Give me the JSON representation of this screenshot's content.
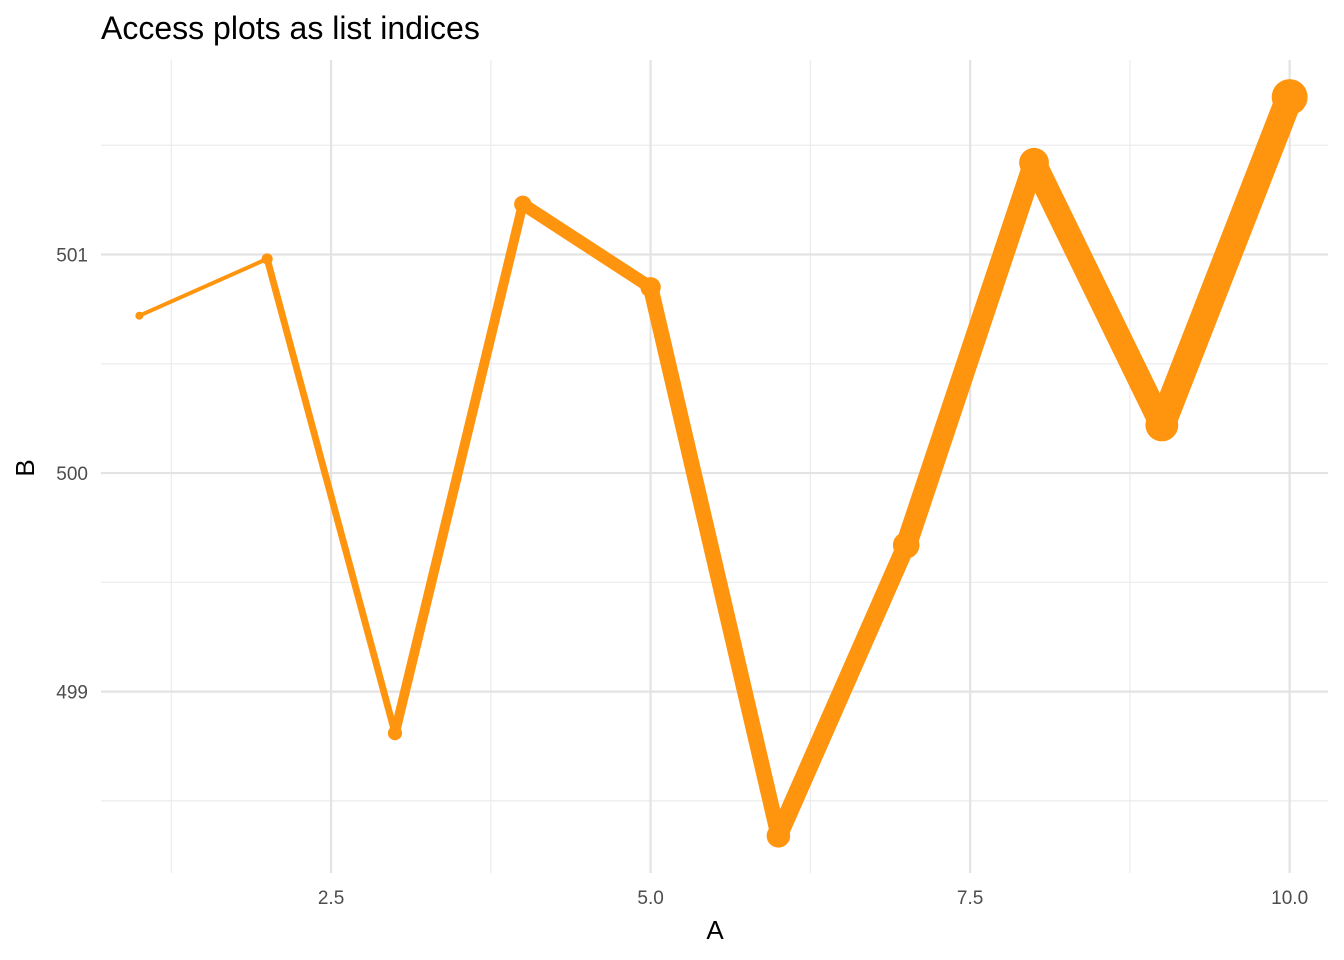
{
  "chart_data": {
    "type": "line",
    "title": "Access plots as list indices",
    "xlabel": "A",
    "ylabel": "B",
    "x": [
      1,
      2,
      3,
      4,
      5,
      6,
      7,
      8,
      9,
      10
    ],
    "series": [
      {
        "values": [
          500.72,
          500.98,
          498.81,
          501.23,
          500.85,
          498.34,
          499.67,
          501.42,
          500.22,
          501.72
        ]
      }
    ],
    "xlim": [
      0.7,
      10.3
    ],
    "ylim": [
      498.17,
      501.89
    ],
    "xticks": [
      {
        "value": 2.5,
        "label": "2.5"
      },
      {
        "value": 5.0,
        "label": "5.0"
      },
      {
        "value": 7.5,
        "label": "7.5"
      },
      {
        "value": 10.0,
        "label": "10.0"
      }
    ],
    "yticks": [
      {
        "value": 499,
        "label": "499"
      },
      {
        "value": 500,
        "label": "500"
      },
      {
        "value": 501,
        "label": "501"
      }
    ],
    "x_minor": [
      1.25,
      3.75,
      6.25,
      8.75
    ],
    "y_minor": [
      498.5,
      499.5,
      500.5,
      501.5
    ],
    "grid": true,
    "legend": "none",
    "line_color": "#FF950E",
    "size_mapped_to": "x"
  }
}
